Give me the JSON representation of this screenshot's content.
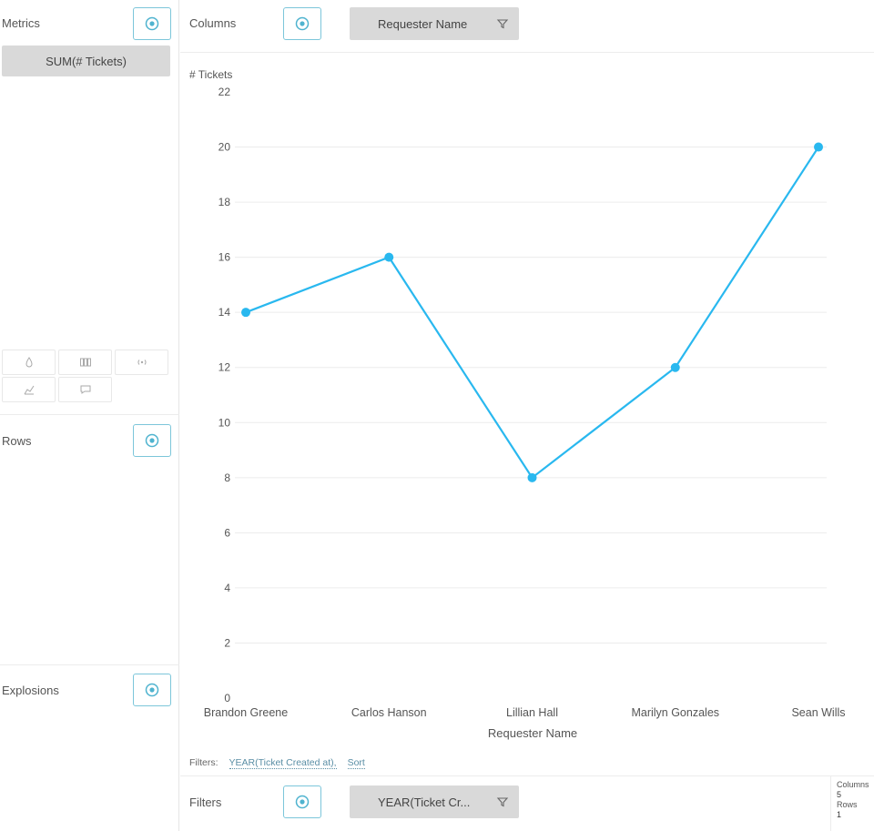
{
  "metrics": {
    "label": "Metrics",
    "pill": "SUM(# Tickets)"
  },
  "rows": {
    "label": "Rows"
  },
  "explosions": {
    "label": "Explosions"
  },
  "columns": {
    "label": "Columns",
    "pill": "Requester Name"
  },
  "filters": {
    "label": "Filters",
    "pill": "YEAR(Ticket Cr...",
    "summary_label": "Filters:",
    "summary_filter": "YEAR(Ticket Created at),",
    "summary_sort": "Sort"
  },
  "stats": {
    "columns_label": "Columns",
    "columns_value": "5",
    "rows_label": "Rows",
    "rows_value": "1"
  },
  "viz_icons": [
    "drop-icon",
    "columns-chart-icon",
    "signal-icon",
    "area-chart-icon",
    "comment-icon"
  ],
  "colors": {
    "accent": "#7cc6da",
    "line": "#29b8ef",
    "pill": "#d9d9d9",
    "grid": "#ececec"
  },
  "chart_data": {
    "type": "line",
    "categories": [
      "Brandon Greene",
      "Carlos Hanson",
      "Lillian Hall",
      "Marilyn Gonzales",
      "Sean Wills"
    ],
    "series": [
      {
        "values": [
          14,
          16,
          8,
          12,
          20
        ]
      }
    ],
    "ylabel": "# Tickets",
    "xlabel": "Requester Name",
    "ylim": [
      0,
      22
    ],
    "yticks": [
      0,
      2,
      4,
      6,
      8,
      10,
      12,
      14,
      16,
      18,
      20,
      22
    ],
    "grid": true
  }
}
